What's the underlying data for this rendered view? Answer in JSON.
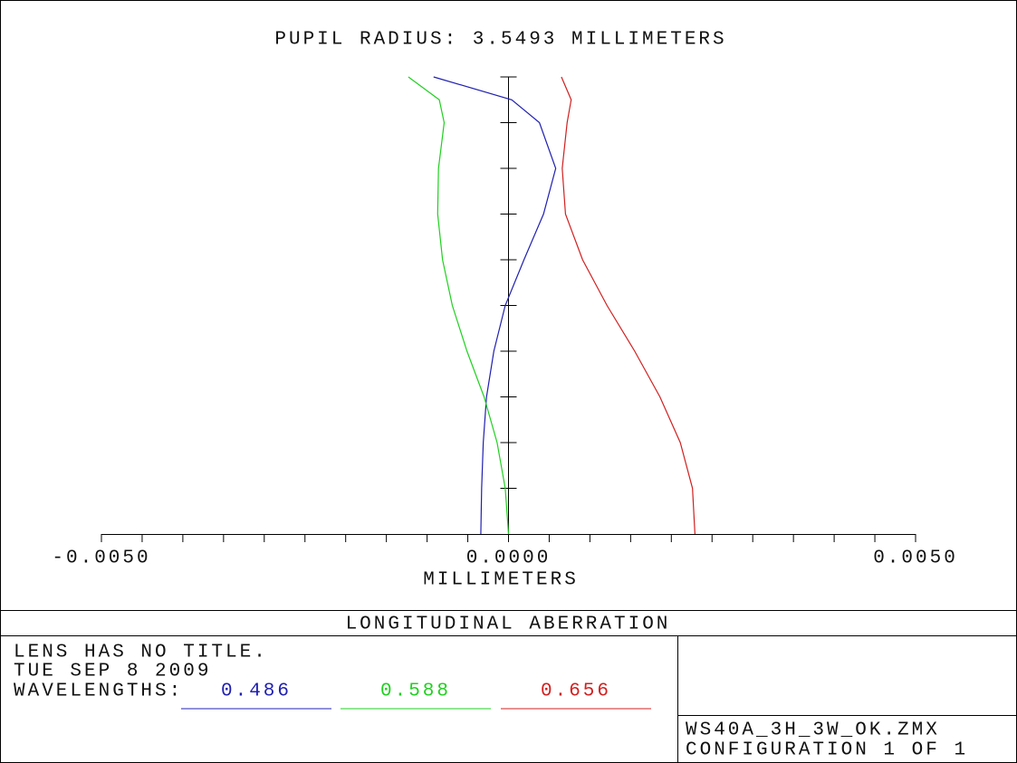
{
  "chart_data": {
    "type": "line",
    "title": "PUPIL RADIUS: 3.5493 MILLIMETERS",
    "x_label": "MILLIMETERS",
    "y": [
      0,
      0.1,
      0.2,
      0.3,
      0.4,
      0.5,
      0.6,
      0.7,
      0.8,
      0.9,
      0.95,
      1.0
    ],
    "series": [
      {
        "name": "0.486",
        "color": "#2020b0",
        "values": [
          -0.00034,
          -0.00033,
          -0.00031,
          -0.00027,
          -0.00018,
          -4e-05,
          0.00019,
          0.00043,
          0.00058,
          0.00038,
          4e-05,
          -0.00092
        ]
      },
      {
        "name": "0.588",
        "color": "#20d020",
        "values": [
          0,
          -4e-05,
          -0.00014,
          -0.0003,
          -0.00051,
          -0.00069,
          -0.00081,
          -0.00087,
          -0.00086,
          -0.00079,
          -0.00085,
          -0.00123
        ]
      },
      {
        "name": "0.656",
        "color": "#d02020",
        "values": [
          0.00229,
          0.00226,
          0.00211,
          0.00186,
          0.00155,
          0.00121,
          0.00091,
          0.0007,
          0.00066,
          0.00072,
          0.00077,
          0.00065
        ]
      }
    ],
    "xlim": [
      -0.005,
      0.005
    ],
    "xticks": [
      {
        "value": -0.005,
        "label": "-0.0050"
      },
      {
        "value": 0,
        "label": "0.0000"
      },
      {
        "value": 0.005,
        "label": "0.0050"
      }
    ],
    "xminorticks": [
      -0.0045,
      -0.004,
      -0.0035,
      -0.003,
      -0.0025,
      -0.002,
      -0.0015,
      -0.001,
      -0.0005,
      0.0005,
      0.001,
      0.0015,
      0.002,
      0.0025,
      0.003,
      0.0035,
      0.004,
      0.0045
    ],
    "ylim": [
      0,
      1
    ],
    "yticks": [
      0.1,
      0.2,
      0.3,
      0.4,
      0.5,
      0.6,
      0.7,
      0.8,
      0.9,
      1.0
    ]
  },
  "footer": {
    "plot_title": "LONGITUDINAL ABERRATION",
    "lens_title": "LENS HAS NO TITLE.",
    "date": "TUE SEP 8 2009",
    "wavelengths_label": "WAVELENGTHS:",
    "file": "WS40A_3H_3W_OK.ZMX",
    "configuration": "CONFIGURATION 1 OF 1"
  }
}
